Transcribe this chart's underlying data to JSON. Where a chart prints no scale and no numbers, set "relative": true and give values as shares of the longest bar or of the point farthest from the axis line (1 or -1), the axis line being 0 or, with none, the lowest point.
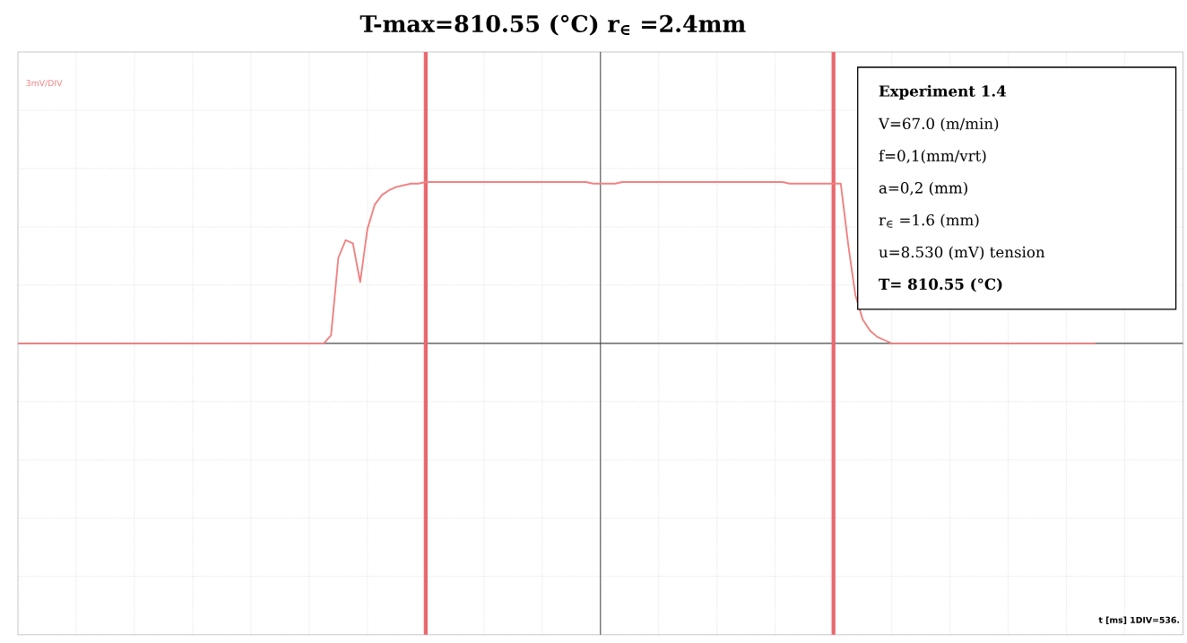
{
  "chart_data": {
    "type": "line",
    "title": "T-max=810.55 (°C) r$_{∈}$ =2.4mm",
    "categories": [
      null,
      null,
      null,
      null,
      null,
      null,
      null,
      null,
      null,
      null,
      null,
      null,
      null,
      null,
      null,
      null,
      null,
      null,
      null,
      null,
      null,
      null,
      null,
      null,
      null,
      null,
      null,
      null,
      null,
      null,
      null,
      null,
      null,
      null,
      null,
      null,
      null,
      null,
      null,
      null,
      null,
      null,
      null,
      null,
      null,
      null,
      null,
      null,
      null,
      null,
      null,
      null,
      null,
      null,
      null,
      null,
      null,
      null,
      null,
      null,
      null,
      null,
      null,
      null,
      null,
      null,
      null,
      null,
      null,
      null,
      null,
      null,
      null,
      null,
      null,
      null,
      null,
      null,
      null,
      null,
      null,
      null,
      null,
      null,
      null,
      null,
      null,
      null,
      null,
      null,
      null,
      null,
      null,
      null,
      null,
      null,
      null,
      null,
      null,
      null,
      null,
      null,
      null,
      null,
      null,
      null,
      null,
      null,
      null,
      null,
      null,
      null,
      null,
      null,
      null,
      null,
      null,
      null,
      null,
      null,
      null,
      null,
      null,
      null,
      null,
      null,
      null,
      null,
      null,
      null,
      null,
      null,
      null,
      null,
      null,
      null,
      null,
      null,
      null,
      null,
      null,
      null,
      null,
      null,
      null,
      null,
      null,
      null,
      null
    ],
    "values": [
      0,
      0,
      0,
      0,
      0,
      0,
      0,
      0,
      0,
      0,
      0,
      0,
      0,
      0,
      0,
      0,
      0,
      0,
      0,
      0,
      0,
      0,
      0,
      0,
      0,
      0,
      0,
      0,
      0,
      0,
      0,
      0,
      0,
      0,
      0,
      0,
      0,
      0,
      0,
      0,
      0,
      0,
      0,
      0.05,
      0.53,
      0.64,
      0.62,
      0.38,
      0.71,
      0.86,
      0.92,
      0.95,
      0.97,
      0.98,
      0.99,
      0.99,
      1,
      1,
      1,
      1,
      1,
      1,
      1,
      1,
      1,
      1,
      1,
      1,
      1,
      1,
      1,
      1,
      1,
      1,
      1,
      1,
      1,
      1,
      1,
      0.99,
      0.99,
      0.99,
      0.99,
      1,
      1,
      1,
      1,
      1,
      1,
      1,
      1,
      1,
      1,
      1,
      1,
      1,
      1,
      1,
      1,
      1,
      1,
      1,
      1,
      1,
      1,
      1,
      0.99,
      0.99,
      0.99,
      0.99,
      0.99,
      0.99,
      0.99,
      0.99,
      0.62,
      0.3,
      0.15,
      0.08,
      0.04,
      0.02,
      0,
      0,
      0,
      0,
      0,
      0,
      0,
      0,
      0,
      0,
      0,
      0,
      0,
      0,
      0,
      0,
      0,
      0,
      0,
      0,
      0,
      0,
      0,
      0,
      0,
      0,
      0,
      0,
      0
    ],
    "color": "#f08080",
    "relative": true,
    "grid": true,
    "annotations": [
      "3mV/DIV",
      "t [ms]  1DIV=536.",
      "Experiment 1.4",
      "V=67.0 (m/min)",
      "f=0,1(mm/vrt)",
      "a=0,2 (mm)",
      "r$_{∈}$ =1.6 (mm)",
      "u=8.530  (mV) tension",
      "T= 810.55 (°C)"
    ]
  }
}
